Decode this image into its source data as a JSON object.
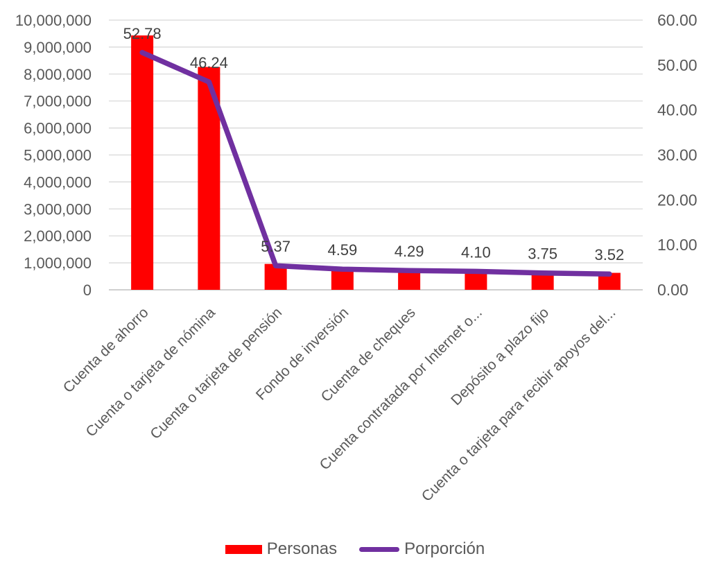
{
  "chart_data": {
    "type": "combo-bar-line",
    "title": "",
    "categories": [
      "Cuenta de ahorro",
      "Cuenta o tarjeta de nómina",
      "Cuenta o tarjeta de pensión",
      "Fondo de inversión",
      "Cuenta de cheques",
      "Cuenta contratada por Internet o...",
      "Depósito a plazo fijo",
      "Cuenta o tarjeta para recibir apoyos del..."
    ],
    "series": [
      {
        "name": "Personas",
        "type": "bar",
        "axis": "left",
        "color": "#ff0000",
        "values": [
          9431000,
          8263000,
          960000,
          820000,
          767000,
          733000,
          670000,
          629000
        ]
      },
      {
        "name": "Porporción",
        "type": "line",
        "axis": "right",
        "color": "#7030a0",
        "values": [
          52.78,
          46.24,
          5.37,
          4.59,
          4.29,
          4.1,
          3.75,
          3.52
        ],
        "data_labels": [
          "52.78",
          "46.24",
          "5.37",
          "4.59",
          "4.29",
          "4.10",
          "3.75",
          "3.52"
        ]
      }
    ],
    "left_axis": {
      "min": 0,
      "max": 10000000,
      "step": 1000000,
      "tick_labels": [
        "0",
        "1,000,000",
        "2,000,000",
        "3,000,000",
        "4,000,000",
        "5,000,000",
        "6,000,000",
        "7,000,000",
        "8,000,000",
        "9,000,000",
        "10,000,000"
      ]
    },
    "right_axis": {
      "min": 0,
      "max": 60,
      "step": 10,
      "tick_labels": [
        "0.00",
        "10.00",
        "20.00",
        "30.00",
        "40.00",
        "50.00",
        "60.00"
      ]
    },
    "grid": true,
    "legend": {
      "position": "bottom",
      "items": [
        {
          "label": "Personas",
          "swatch": "bar",
          "color": "#ff0000"
        },
        {
          "label": "Porporción",
          "swatch": "line",
          "color": "#7030a0"
        }
      ]
    },
    "colors": {
      "background": "#ffffff",
      "gridline": "#d6d6d6",
      "axis_line": "#bfbfbf",
      "tick_text": "#595959",
      "category_text": "#595959",
      "data_label_text": "#404040"
    }
  }
}
